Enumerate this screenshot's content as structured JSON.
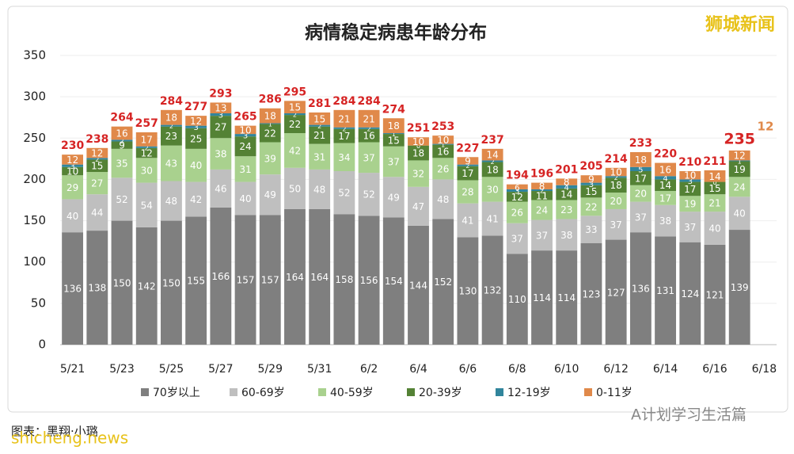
{
  "chart_data": {
    "type": "stacked-bar",
    "title": "病情稳定病患年龄分布",
    "categories": [
      "5/21",
      null,
      "5/23",
      null,
      "5/25",
      null,
      "5/27",
      null,
      "5/29",
      null,
      "5/31",
      null,
      "6/2",
      null,
      "6/4",
      null,
      "6/6",
      null,
      "6/8",
      null,
      "6/10",
      null,
      "6/12",
      null,
      "6/14",
      null,
      "6/16",
      null,
      "6/18"
    ],
    "series": [
      {
        "name": "70岁以上",
        "color": "#7f7f7f",
        "values": [
          136,
          138,
          150,
          142,
          150,
          155,
          166,
          157,
          157,
          164,
          164,
          158,
          156,
          154,
          144,
          152,
          130,
          132,
          110,
          114,
          114,
          123,
          127,
          136,
          131,
          124,
          121,
          139,
          null
        ]
      },
      {
        "name": "60-69岁",
        "color": "#bfbfbf",
        "values": [
          40,
          44,
          52,
          54,
          48,
          42,
          46,
          40,
          49,
          50,
          48,
          52,
          52,
          49,
          47,
          48,
          41,
          41,
          37,
          37,
          38,
          33,
          37,
          37,
          38,
          37,
          40,
          40,
          null
        ]
      },
      {
        "name": "40-59岁",
        "color": "#a9d18e",
        "values": [
          29,
          27,
          35,
          30,
          43,
          40,
          38,
          31,
          39,
          42,
          31,
          34,
          37,
          37,
          32,
          26,
          28,
          30,
          26,
          24,
          23,
          22,
          20,
          20,
          17,
          19,
          21,
          24,
          null
        ]
      },
      {
        "name": "20-39岁",
        "color": "#548235",
        "values": [
          10,
          15,
          9,
          12,
          23,
          25,
          27,
          24,
          22,
          22,
          21,
          17,
          16,
          15,
          18,
          16,
          17,
          18,
          12,
          11,
          14,
          15,
          18,
          17,
          14,
          17,
          15,
          19,
          null
        ]
      },
      {
        "name": "12-19岁",
        "color": "#31859c",
        "values": [
          3,
          2,
          2,
          2,
          2,
          3,
          3,
          3,
          1,
          2,
          2,
          2,
          2,
          1,
          0,
          1,
          2,
          2,
          3,
          2,
          4,
          3,
          2,
          5,
          4,
          3,
          0,
          1,
          null
        ]
      },
      {
        "name": "0-11岁",
        "color": "#e0894a",
        "values": [
          12,
          12,
          16,
          17,
          18,
          12,
          13,
          10,
          18,
          15,
          15,
          21,
          21,
          18,
          10,
          10,
          9,
          14,
          6,
          8,
          8,
          9,
          10,
          18,
          16,
          10,
          14,
          12,
          null
        ]
      }
    ],
    "totals": [
      230,
      238,
      264,
      257,
      284,
      277,
      293,
      265,
      286,
      295,
      281,
      284,
      284,
      274,
      251,
      253,
      227,
      237,
      194,
      196,
      201,
      205,
      214,
      233,
      220,
      210,
      211,
      235,
      null
    ],
    "ylim": [
      0,
      350
    ],
    "yticks": [
      0,
      50,
      100,
      150,
      200,
      250,
      300,
      350
    ],
    "grid": true,
    "credits": [
      "狮城新闻",
      "图表：黑翔·小璐",
      "shicheng.news",
      "A计划学习生活篇"
    ]
  }
}
